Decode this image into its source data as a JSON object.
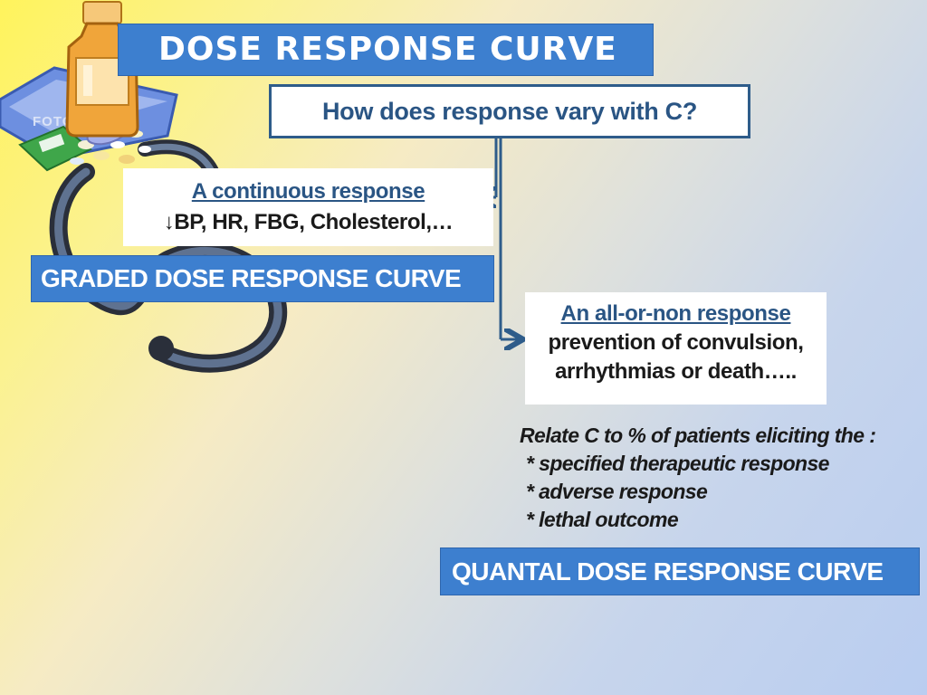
{
  "slide": {
    "title": "DOSE RESPONSE CURVE",
    "question": "How does response vary with C?",
    "continuous": {
      "heading": "A continuous response",
      "arrow": "↓",
      "examples": "BP, HR, FBG, Cholesterol,…"
    },
    "graded_label": "GRADED DOSE RESPONSE CURVE",
    "all_or_none": {
      "heading": "An all-or-non response",
      "line1": "prevention of convulsion,",
      "line2": "arrhythmias or death….."
    },
    "relate": {
      "lead": "Relate C to % of patients eliciting the :",
      "items": [
        "* specified therapeutic response",
        "* adverse response",
        "* lethal outcome"
      ]
    },
    "quantal_label": "QUANTAL DOSE  RESPONSE CURVE",
    "clipart_watermark": "FOTOSEARCH",
    "colors": {
      "banner_blue": "#3d7fcf",
      "heading_blue": "#2a5584",
      "connector": "#2e5c8a"
    }
  }
}
